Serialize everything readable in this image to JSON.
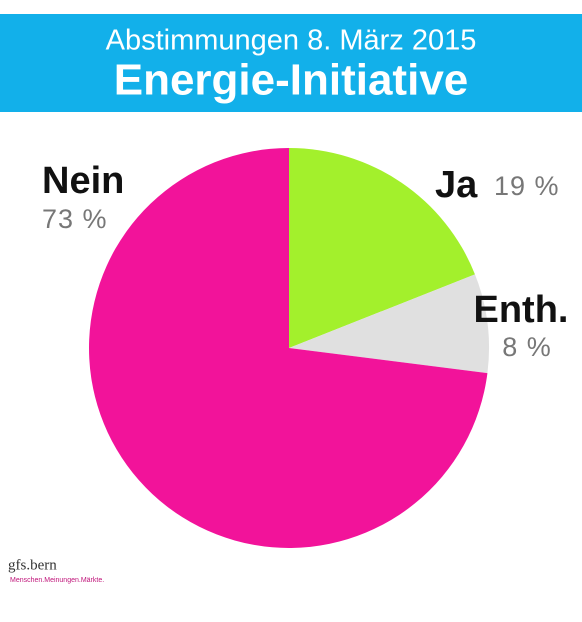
{
  "chart_data": {
    "type": "pie",
    "subtitle": "Abstimmungen 8. März 2015",
    "title": "Energie-Initiative",
    "categories": [
      "Ja",
      "Enth.",
      "Nein"
    ],
    "values": [
      19,
      8,
      73
    ],
    "value_labels": [
      "19 %",
      "8 %",
      "73 %"
    ],
    "colors": [
      "#a3f02c",
      "#e0e0e0",
      "#f2139a"
    ]
  },
  "footer": {
    "logo": "gfs.bern",
    "tagline": "Menschen.Meinungen.Märkte."
  }
}
